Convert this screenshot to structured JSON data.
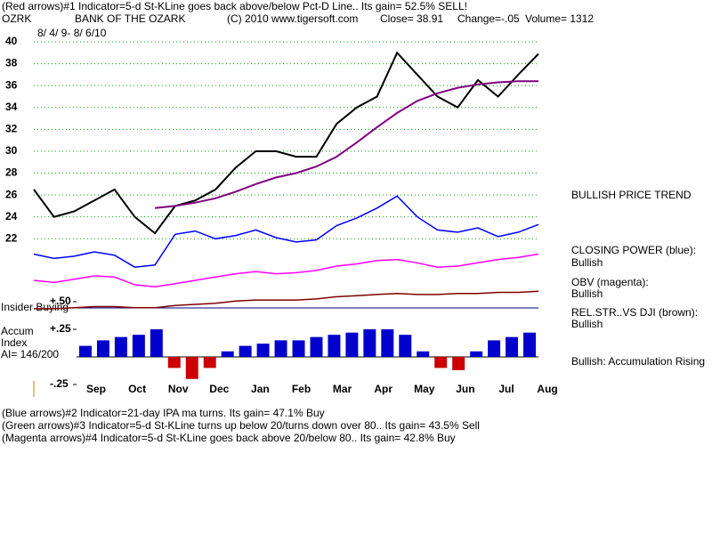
{
  "header": {
    "line1": "(Red arrows)#1 Indicator=5-d St-KLine goes back above/below Pct-D Line.. Its gain= 52.5% SELL!",
    "symbol": "OZRK",
    "company": "BANK OF THE OZARK",
    "copyright": "(C) 2010 www.tigersoft.com",
    "close": "Close=  38.91",
    "change": "Change=-.05",
    "volume": "Volume= 1312",
    "dates": "8/ 4/ 9- 8/ 6/10"
  },
  "side_labels": [
    "BULLISH PRICE TREND",
    "CLOSING POWER (blue):",
    "Bullish",
    "OBV (magenta):",
    "Bullish",
    "REL.STR..VS DJI (brown):",
    "Bullish",
    "Bullish: Accumulation Rising"
  ],
  "panel_labels": {
    "insider": "Insider Buying",
    "accum1": "Accum",
    "accum2": "Index",
    "ai": "AI= 146/200"
  },
  "footer": [
    "(Blue arrows)#2 Indicator=21-day IPA ma turns. Its gain= 47.1% Buy",
    "(Green arrows)#3 Indicator=5-d St-KLine turns up below 20/turns down over 80.. Its gain= 43.5% Sell",
    "(Magenta arrows)#4 Indicator=5-d St-KLine goes back above 20/below 80.. Its gain= 42.8% Buy"
  ],
  "chart_data": [
    {
      "type": "line",
      "x_labels": [
        "Sep",
        "Oct",
        "Nov",
        "Dec",
        "Jan",
        "Feb",
        "Mar",
        "Apr",
        "May",
        "Jun",
        "Jul",
        "Aug"
      ],
      "ylim": [
        15,
        41
      ],
      "yticks": [
        22,
        24,
        26,
        28,
        30,
        32,
        34,
        36,
        38,
        40
      ],
      "grid": true,
      "series": [
        {
          "color": "#000000",
          "values": [
            26.5,
            24,
            24.5,
            25.5,
            26.5,
            24,
            22.5,
            25,
            25.5,
            26.5,
            28.5,
            30,
            30,
            29.5,
            29.5,
            32.5,
            34,
            35,
            39,
            37,
            35,
            34,
            36.5,
            35,
            37,
            38.9
          ]
        },
        {
          "color": "#800080",
          "values": [
            null,
            null,
            null,
            null,
            null,
            null,
            24.8,
            25.0,
            25.3,
            25.7,
            26.3,
            27.0,
            27.6,
            28.0,
            28.6,
            29.5,
            30.8,
            32.2,
            33.5,
            34.6,
            35.3,
            35.8,
            36.1,
            36.3,
            36.4,
            36.4
          ]
        },
        {
          "color": "#0000ff",
          "values": [
            20.6,
            20.2,
            20.4,
            20.8,
            20.5,
            19.4,
            19.6,
            22.4,
            22.7,
            22.0,
            22.3,
            22.8,
            22.1,
            21.7,
            21.9,
            23.2,
            23.9,
            24.8,
            25.9,
            24.0,
            22.8,
            22.6,
            23.0,
            22.2,
            22.6,
            23.3
          ]
        },
        {
          "color": "#ff00ff",
          "values": [
            18.2,
            18.0,
            18.3,
            18.6,
            18.5,
            17.8,
            17.6,
            17.9,
            18.2,
            18.5,
            18.8,
            19.0,
            18.8,
            18.9,
            19.1,
            19.5,
            19.7,
            20.0,
            20.1,
            19.8,
            19.4,
            19.5,
            19.8,
            20.1,
            20.3,
            20.6
          ]
        },
        {
          "color": "#800000",
          "values": [
            15.6,
            15.6,
            15.7,
            15.8,
            15.8,
            15.7,
            15.7,
            15.9,
            16.0,
            16.1,
            16.3,
            16.4,
            16.4,
            16.4,
            16.5,
            16.7,
            16.8,
            16.9,
            17.0,
            16.9,
            16.9,
            17.0,
            17.0,
            17.1,
            17.1,
            17.2
          ]
        }
      ]
    },
    {
      "type": "bar",
      "ylim": [
        -0.25,
        0.5
      ],
      "yticks": [
        {
          "value": 0.5,
          "label": "+.50"
        },
        {
          "value": 0.25,
          "label": "+.25"
        },
        {
          "value": -0.25,
          "label": "-.25"
        }
      ],
      "positive_color": "#0000cc",
      "negative_color": "#cc0000",
      "values": [
        0.1,
        0.15,
        0.18,
        0.2,
        0.25,
        -0.1,
        -0.2,
        -0.1,
        0.05,
        0.1,
        0.12,
        0.15,
        0.15,
        0.18,
        0.2,
        0.22,
        0.25,
        0.25,
        0.2,
        0.05,
        -0.1,
        -0.12,
        0.05,
        0.15,
        0.18,
        0.22
      ]
    }
  ]
}
